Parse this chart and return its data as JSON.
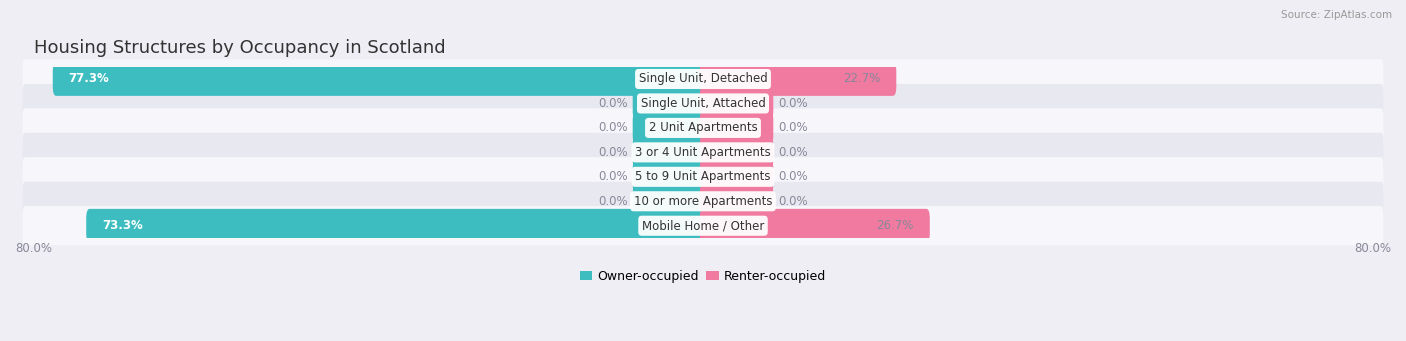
{
  "title": "Housing Structures by Occupancy in Scotland",
  "source": "Source: ZipAtlas.com",
  "categories": [
    "Single Unit, Detached",
    "Single Unit, Attached",
    "2 Unit Apartments",
    "3 or 4 Unit Apartments",
    "5 to 9 Unit Apartments",
    "10 or more Apartments",
    "Mobile Home / Other"
  ],
  "owner_values": [
    77.3,
    0.0,
    0.0,
    0.0,
    0.0,
    0.0,
    73.3
  ],
  "renter_values": [
    22.7,
    0.0,
    0.0,
    0.0,
    0.0,
    0.0,
    26.7
  ],
  "owner_color": "#3dbdc0",
  "renter_color": "#f07aa0",
  "min_bar_width": 8.0,
  "bar_height": 0.58,
  "xlim_left": -80.0,
  "xlim_right": 80.0,
  "background_color": "#eeeef4",
  "row_colors": [
    "#f7f7fb",
    "#e8e8f0"
  ],
  "label_color_inside": "#ffffff",
  "label_color_outside": "#888899",
  "title_fontsize": 13,
  "label_fontsize": 8.5,
  "tick_fontsize": 8.5,
  "legend_fontsize": 9,
  "cat_label_fontsize": 8.5
}
